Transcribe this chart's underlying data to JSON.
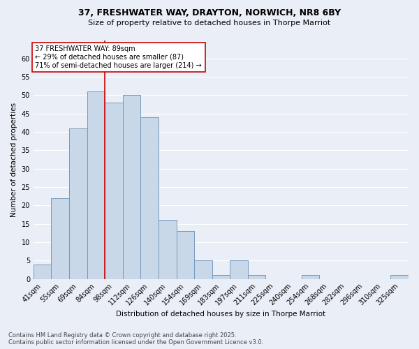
{
  "title_line1": "37, FRESHWATER WAY, DRAYTON, NORWICH, NR8 6BY",
  "title_line2": "Size of property relative to detached houses in Thorpe Marriot",
  "xlabel": "Distribution of detached houses by size in Thorpe Marriot",
  "ylabel": "Number of detached properties",
  "bin_labels": [
    "41sqm",
    "55sqm",
    "69sqm",
    "84sqm",
    "98sqm",
    "112sqm",
    "126sqm",
    "140sqm",
    "154sqm",
    "169sqm",
    "183sqm",
    "197sqm",
    "211sqm",
    "225sqm",
    "240sqm",
    "254sqm",
    "268sqm",
    "282sqm",
    "296sqm",
    "310sqm",
    "325sqm"
  ],
  "bar_values": [
    4,
    22,
    41,
    51,
    48,
    50,
    44,
    16,
    13,
    5,
    1,
    5,
    1,
    0,
    0,
    1,
    0,
    0,
    0,
    0,
    1
  ],
  "bar_color": "#c8d8e8",
  "bar_edge_color": "#7799bb",
  "vline_x_idx": 3,
  "vline_color": "#cc0000",
  "annotation_text": "37 FRESHWATER WAY: 89sqm\n← 29% of detached houses are smaller (87)\n71% of semi-detached houses are larger (214) →",
  "annotation_box_color": "#ffffff",
  "annotation_box_edge": "#cc0000",
  "ylim": [
    0,
    65
  ],
  "yticks": [
    0,
    5,
    10,
    15,
    20,
    25,
    30,
    35,
    40,
    45,
    50,
    55,
    60,
    65
  ],
  "background_color": "#eaeff7",
  "grid_color": "#ffffff",
  "footer_line1": "Contains HM Land Registry data © Crown copyright and database right 2025.",
  "footer_line2": "Contains public sector information licensed under the Open Government Licence v3.0."
}
